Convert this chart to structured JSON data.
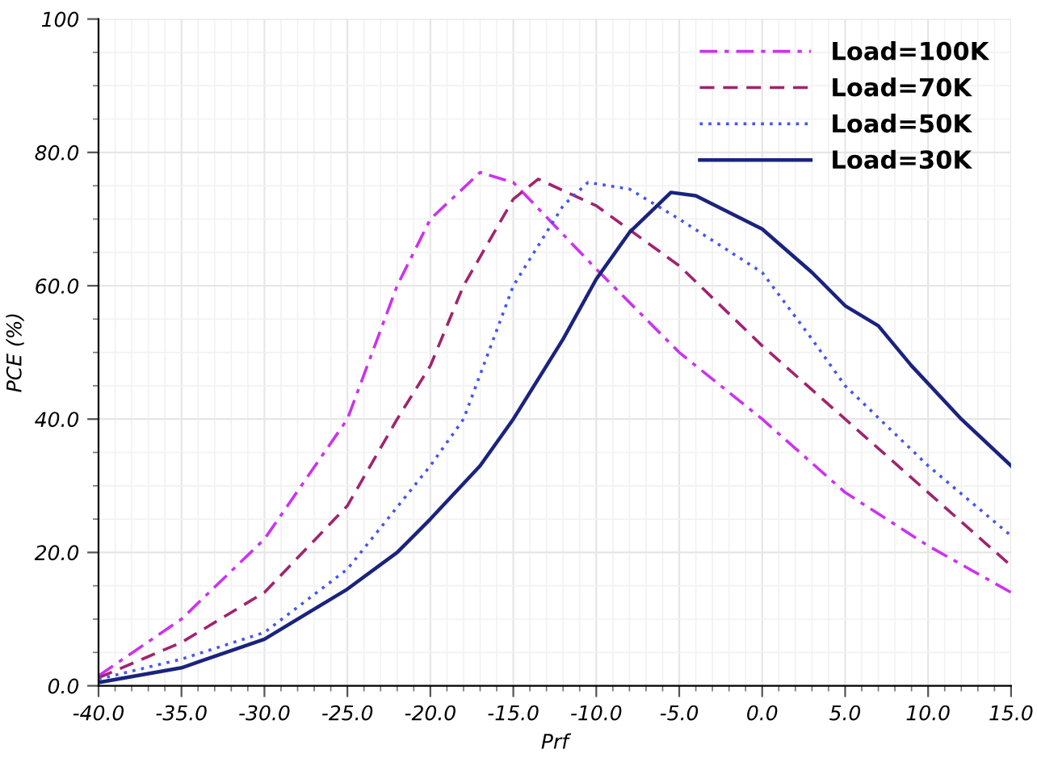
{
  "chart_data": {
    "type": "line",
    "xlabel": "Prf",
    "ylabel": "PCE (%)",
    "xlim": [
      -40,
      15
    ],
    "ylim": [
      0,
      100
    ],
    "xticks": [
      {
        "value": -40,
        "label": "-40.0"
      },
      {
        "value": -35,
        "label": "-35.0"
      },
      {
        "value": -30,
        "label": "-30.0"
      },
      {
        "value": -25,
        "label": "-25.0"
      },
      {
        "value": -20,
        "label": "-20.0"
      },
      {
        "value": -15,
        "label": "-15.0"
      },
      {
        "value": -10,
        "label": "-10.0"
      },
      {
        "value": -5,
        "label": "-5.0"
      },
      {
        "value": 0,
        "label": "0.0"
      },
      {
        "value": 5,
        "label": "5.0"
      },
      {
        "value": 10,
        "label": "10.0"
      },
      {
        "value": 15,
        "label": "15.0"
      }
    ],
    "yticks": [
      {
        "value": 0,
        "label": "0.0"
      },
      {
        "value": 20,
        "label": "20.0"
      },
      {
        "value": 40,
        "label": "40.0"
      },
      {
        "value": 60,
        "label": "60.0"
      },
      {
        "value": 80,
        "label": "80.0"
      },
      100
    ],
    "grid": true,
    "legend": "top right",
    "marker": "none",
    "series": [
      {
        "name": "Load=100K",
        "color": "#cc33ee",
        "line_style": "dashdot",
        "x": [
          -40,
          -35,
          -30,
          -25,
          -22,
          -20,
          -17,
          -15,
          -10,
          -5,
          0,
          5,
          10,
          15
        ],
        "values": [
          1.5,
          10,
          22,
          40,
          60,
          70,
          77,
          75.5,
          62.5,
          50,
          40,
          29,
          21,
          14
        ]
      },
      {
        "name": "Load=70K",
        "color": "#a0246e",
        "line_style": "dashed",
        "x": [
          -40,
          -35,
          -30,
          -25,
          -22,
          -20,
          -18,
          -15,
          -13.5,
          -10,
          -5,
          0,
          5,
          10,
          15
        ],
        "values": [
          1.2,
          6.5,
          14,
          27,
          40,
          48,
          60,
          73,
          76,
          72,
          63,
          51,
          40,
          29,
          18
        ]
      },
      {
        "name": "Load=50K",
        "color": "#4455ee",
        "line_style": "dotted",
        "x": [
          -40,
          -35,
          -30,
          -25,
          -20,
          -18,
          -15,
          -12,
          -10.5,
          -8,
          -5,
          0,
          3,
          5,
          10,
          15
        ],
        "values": [
          1,
          4,
          8,
          17.5,
          33,
          40,
          60,
          72,
          75.5,
          74.5,
          70,
          62,
          52,
          45,
          33,
          22.5
        ]
      },
      {
        "name": "Load=30K",
        "color": "#1a237e",
        "line_style": "solid",
        "x": [
          -40,
          -35,
          -30,
          -25,
          -22,
          -20,
          -17,
          -15,
          -12,
          -10,
          -8,
          -5.5,
          -4,
          0,
          3,
          5,
          7,
          9,
          12,
          15
        ],
        "values": [
          0.5,
          2.7,
          7,
          14.5,
          20,
          25,
          33,
          40,
          52,
          61,
          68,
          74,
          73.5,
          68.5,
          62,
          57,
          54,
          48,
          40,
          33
        ]
      }
    ]
  }
}
